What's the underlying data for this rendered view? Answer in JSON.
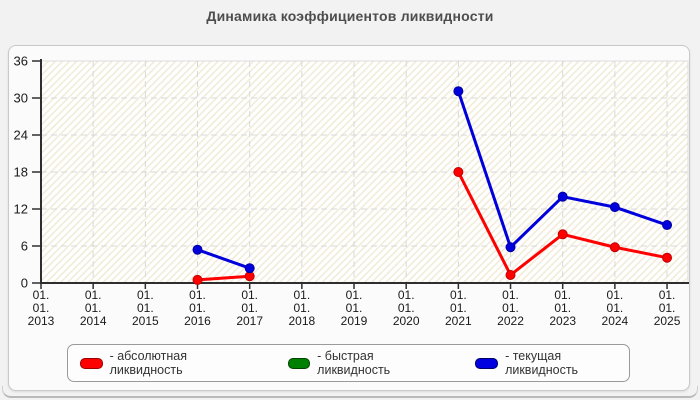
{
  "chart_data": {
    "type": "line",
    "title": "Динамика коэффициентов ликвидности",
    "x_tick_labels": [
      "01.01.2013",
      "01.01.2014",
      "01.01.2015",
      "01.01.2016",
      "01.01.2017",
      "01.01.2018",
      "01.01.2019",
      "01.01.2020",
      "01.01.2021",
      "01.01.2022",
      "01.01.2023",
      "01.01.2024",
      "01.01.2025"
    ],
    "y_ticks": [
      0,
      6,
      12,
      18,
      24,
      30,
      36
    ],
    "ylim": [
      0,
      36
    ],
    "grid": "dashed",
    "legend_position": "bottom",
    "plot_background": "hatched-cream",
    "series": [
      {
        "name": "абсолютная ликвидность",
        "color": "#ff0000",
        "edge": "#c00000",
        "values": [
          null,
          null,
          null,
          0.5,
          1.1,
          null,
          null,
          null,
          18.0,
          1.3,
          7.9,
          5.8,
          4.1
        ]
      },
      {
        "name": "быстрая ликвидность",
        "color": "#008000",
        "edge": "#005500",
        "values": [
          null,
          null,
          null,
          null,
          null,
          null,
          null,
          null,
          null,
          null,
          null,
          null,
          null
        ]
      },
      {
        "name": "текущая ликвидность",
        "color": "#0000dd",
        "edge": "#0000a0",
        "values": [
          null,
          null,
          null,
          5.4,
          2.4,
          null,
          null,
          null,
          31.1,
          5.8,
          14.0,
          12.3,
          9.4
        ]
      }
    ]
  },
  "legend": {
    "items": [
      {
        "label": "- абсолютная ликвидность",
        "color": "#ff0000",
        "border": "#990000"
      },
      {
        "label": "- быстрая ликвидность",
        "color": "#008000",
        "border": "#004400"
      },
      {
        "label": "- текущая ликвидность",
        "color": "#0000e0",
        "border": "#000066"
      }
    ]
  }
}
